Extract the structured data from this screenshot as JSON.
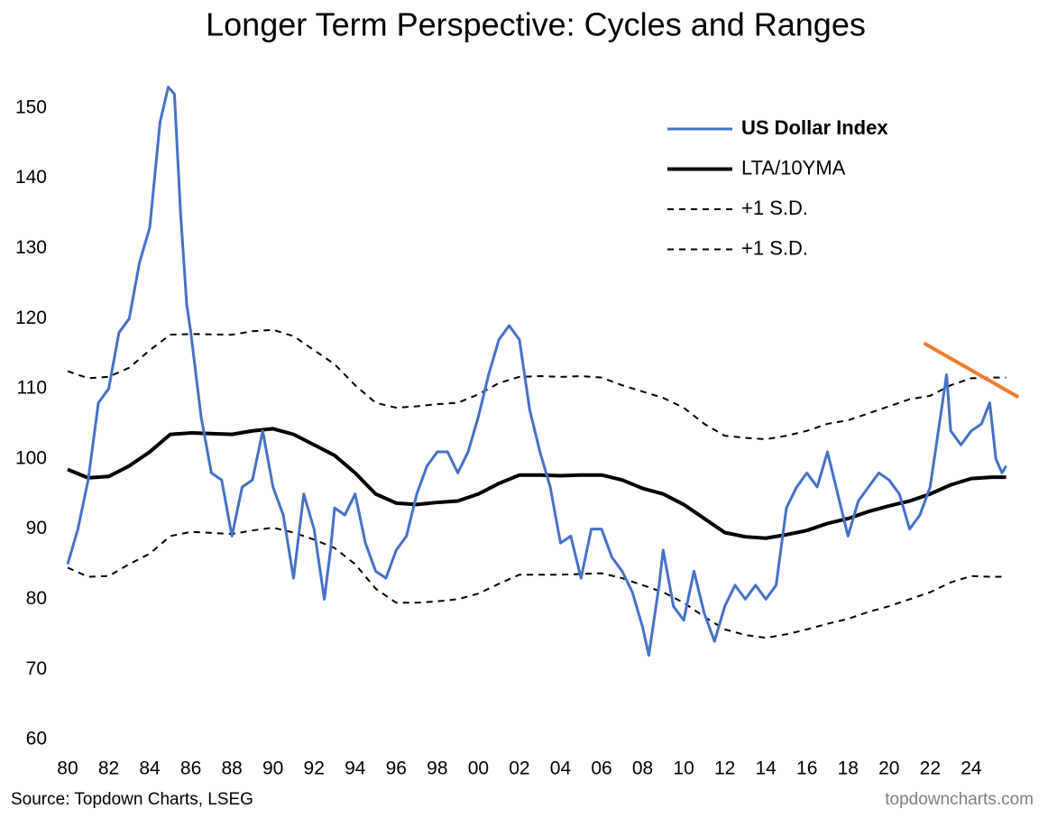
{
  "chart_data": {
    "type": "line",
    "title": "Longer Term Perspective: Cycles and Ranges",
    "source": "Source: Topdown Charts, LSEG",
    "credit": "topdowncharts.com",
    "xlim": [
      1979.5,
      2026.5
    ],
    "ylim": [
      60,
      155
    ],
    "xticks": [
      {
        "value": 1980,
        "label": "80"
      },
      {
        "value": 1982,
        "label": "82"
      },
      {
        "value": 1984,
        "label": "84"
      },
      {
        "value": 1986,
        "label": "86"
      },
      {
        "value": 1988,
        "label": "88"
      },
      {
        "value": 1990,
        "label": "90"
      },
      {
        "value": 1992,
        "label": "92"
      },
      {
        "value": 1994,
        "label": "94"
      },
      {
        "value": 1996,
        "label": "96"
      },
      {
        "value": 1998,
        "label": "98"
      },
      {
        "value": 2000,
        "label": "00"
      },
      {
        "value": 2002,
        "label": "02"
      },
      {
        "value": 2004,
        "label": "04"
      },
      {
        "value": 2006,
        "label": "06"
      },
      {
        "value": 2008,
        "label": "08"
      },
      {
        "value": 2010,
        "label": "10"
      },
      {
        "value": 2012,
        "label": "12"
      },
      {
        "value": 2014,
        "label": "14"
      },
      {
        "value": 2016,
        "label": "16"
      },
      {
        "value": 2018,
        "label": "18"
      },
      {
        "value": 2020,
        "label": "20"
      },
      {
        "value": 2022,
        "label": "22"
      },
      {
        "value": 2024,
        "label": "24"
      }
    ],
    "yticks": [
      60,
      70,
      80,
      90,
      100,
      110,
      120,
      130,
      140,
      150
    ],
    "grid": false,
    "legend": "upper right",
    "series": [
      {
        "name": "US Dollar Index",
        "color": "#4472c4",
        "style": "solid",
        "x": [
          1980.0,
          1980.5,
          1981.0,
          1981.5,
          1982.0,
          1982.5,
          1983.0,
          1983.5,
          1984.0,
          1984.5,
          1984.9,
          1985.2,
          1985.5,
          1985.8,
          1986.0,
          1986.5,
          1987.0,
          1987.5,
          1988.0,
          1988.5,
          1989.0,
          1989.5,
          1990.0,
          1990.5,
          1991.0,
          1991.5,
          1992.0,
          1992.5,
          1992.8,
          1993.0,
          1993.5,
          1994.0,
          1994.5,
          1995.0,
          1995.5,
          1996.0,
          1996.5,
          1997.0,
          1997.5,
          1998.0,
          1998.5,
          1999.0,
          1999.5,
          2000.0,
          2000.5,
          2001.0,
          2001.5,
          2002.0,
          2002.5,
          2003.0,
          2003.5,
          2004.0,
          2004.5,
          2005.0,
          2005.5,
          2006.0,
          2006.5,
          2007.0,
          2007.5,
          2008.0,
          2008.3,
          2008.8,
          2009.0,
          2009.5,
          2010.0,
          2010.5,
          2011.0,
          2011.5,
          2012.0,
          2012.5,
          2013.0,
          2013.5,
          2014.0,
          2014.5,
          2015.0,
          2015.5,
          2016.0,
          2016.5,
          2017.0,
          2017.5,
          2018.0,
          2018.5,
          2019.0,
          2019.5,
          2020.0,
          2020.5,
          2021.0,
          2021.5,
          2022.0,
          2022.8,
          2023.0,
          2023.5,
          2024.0,
          2024.5,
          2024.9,
          2025.2,
          2025.5,
          2025.7
        ],
        "values": [
          85,
          90,
          97,
          108,
          110,
          118,
          120,
          128,
          133,
          148,
          153,
          152,
          135,
          122,
          118,
          106,
          98,
          97,
          89,
          96,
          97,
          104,
          96,
          92,
          83,
          95,
          90,
          80,
          87,
          93,
          92,
          95,
          88,
          84,
          83,
          87,
          89,
          95,
          99,
          101,
          101,
          98,
          101,
          106,
          112,
          117,
          119,
          117,
          107,
          101,
          96,
          88,
          89,
          83,
          90,
          90,
          86,
          84,
          81,
          76,
          72,
          82,
          87,
          79,
          77,
          84,
          78,
          74,
          79,
          82,
          80,
          82,
          80,
          82,
          93,
          96,
          98,
          96,
          101,
          95,
          89,
          94,
          96,
          98,
          97,
          95,
          90,
          92,
          96,
          112,
          104,
          102,
          104,
          105,
          108,
          100,
          98,
          99
        ]
      },
      {
        "name": "LTA/10YMA",
        "color": "#000000",
        "style": "solid",
        "x": [
          1980,
          1981,
          1982,
          1983,
          1984,
          1985,
          1986,
          1988,
          1989,
          1990,
          1991,
          1992,
          1993,
          1994,
          1995,
          1996,
          1997,
          1998,
          1999,
          2000,
          2001,
          2002,
          2003,
          2004,
          2005,
          2006,
          2007,
          2008,
          2009,
          2010,
          2011,
          2012,
          2013,
          2014,
          2015,
          2016,
          2017,
          2018,
          2019,
          2020,
          2021,
          2022,
          2023,
          2024,
          2025,
          2025.7
        ],
        "values": [
          98.5,
          97.3,
          97.5,
          99,
          101,
          103.5,
          103.7,
          103.5,
          104,
          104.3,
          103.5,
          102,
          100.5,
          98,
          95,
          93.7,
          93.5,
          93.8,
          94,
          95,
          96.5,
          97.7,
          97.7,
          97.6,
          97.7,
          97.7,
          97,
          95.8,
          95,
          93.5,
          91.5,
          89.5,
          88.9,
          88.7,
          89.2,
          89.8,
          90.8,
          91.5,
          92.5,
          93.3,
          94,
          95,
          96.3,
          97.2,
          97.4,
          97.4
        ]
      },
      {
        "name": "+1 S.D.",
        "color": "#000000",
        "style": "dashed",
        "x": [
          1980,
          1981,
          1982,
          1983,
          1984,
          1985,
          1986,
          1988,
          1989,
          1990,
          1991,
          1992,
          1993,
          1994,
          1995,
          1996,
          1997,
          1998,
          1999,
          2000,
          2001,
          2002,
          2003,
          2004,
          2005,
          2006,
          2007,
          2008,
          2009,
          2010,
          2011,
          2012,
          2013,
          2014,
          2015,
          2016,
          2017,
          2018,
          2019,
          2020,
          2021,
          2022,
          2023,
          2024,
          2025,
          2025.7
        ],
        "values": [
          112.5,
          111.5,
          111.7,
          113,
          115.5,
          117.7,
          117.8,
          117.7,
          118.2,
          118.4,
          117.5,
          115.5,
          113.5,
          110.5,
          108,
          107.3,
          107.5,
          107.8,
          108,
          109.2,
          110.8,
          111.7,
          111.8,
          111.7,
          111.8,
          111.6,
          110.5,
          109.6,
          108.7,
          107.3,
          105,
          103.3,
          103,
          102.8,
          103.3,
          104,
          105,
          105.5,
          106.5,
          107.5,
          108.5,
          109,
          110.5,
          111.5,
          111.6,
          111.6
        ]
      },
      {
        "name": "+1 S.D.",
        "color": "#000000",
        "style": "dashed",
        "x": [
          1980,
          1981,
          1982,
          1983,
          1984,
          1985,
          1986,
          1988,
          1989,
          1990,
          1991,
          1992,
          1993,
          1994,
          1995,
          1996,
          1997,
          1998,
          1999,
          2000,
          2001,
          2002,
          2003,
          2004,
          2005,
          2006,
          2007,
          2008,
          2009,
          2010,
          2011,
          2012,
          2013,
          2014,
          2015,
          2016,
          2017,
          2018,
          2019,
          2020,
          2021,
          2022,
          2023,
          2024,
          2025,
          2025.7
        ],
        "values": [
          84.5,
          83.2,
          83.3,
          85,
          86.5,
          89,
          89.6,
          89.3,
          89.8,
          90.2,
          89.5,
          88.5,
          87.3,
          85,
          81.5,
          79.5,
          79.5,
          79.7,
          80,
          80.8,
          82.2,
          83.5,
          83.5,
          83.5,
          83.6,
          83.7,
          83,
          82,
          81,
          79.5,
          77.5,
          75.7,
          74.9,
          74.5,
          75,
          75.7,
          76.5,
          77.2,
          78.2,
          79,
          80,
          81,
          82.4,
          83.3,
          83.2,
          83.2
        ]
      }
    ],
    "trend_line": {
      "x": [
        2021.7,
        2026.3
      ],
      "values": [
        116.5,
        108.8
      ],
      "color": "#ed7d31"
    }
  }
}
